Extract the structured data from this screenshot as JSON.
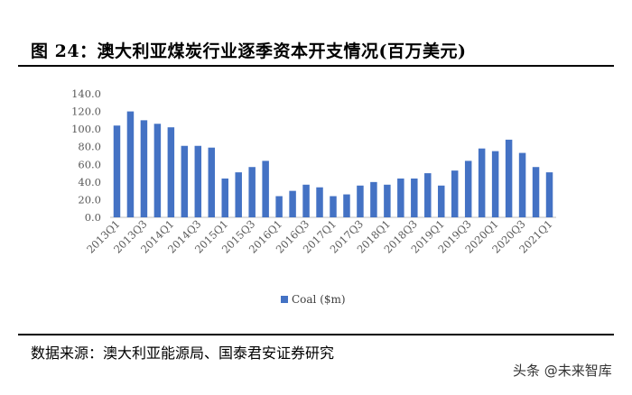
{
  "figure": {
    "title": "图 24：澳大利亚煤炭行业逐季资本开支情况(百万美元)",
    "source": "数据来源：澳大利亚能源局、国泰君安证券研究",
    "watermark": "头条 @未来智库"
  },
  "chart_data": {
    "type": "bar",
    "bar_color": "#4472C4",
    "categories": [
      "2013Q1",
      "2013Q2",
      "2013Q3",
      "2013Q4",
      "2014Q1",
      "2014Q2",
      "2014Q3",
      "2014Q4",
      "2015Q1",
      "2015Q2",
      "2015Q3",
      "2015Q4",
      "2016Q1",
      "2016Q2",
      "2016Q3",
      "2016Q4",
      "2017Q1",
      "2017Q2",
      "2017Q3",
      "2017Q4",
      "2018Q1",
      "2018Q2",
      "2018Q3",
      "2018Q4",
      "2019Q1",
      "2019Q2",
      "2019Q3",
      "2019Q4",
      "2020Q1",
      "2020Q2",
      "2020Q3",
      "2020Q4",
      "2021Q1"
    ],
    "tick_labels": [
      "2013Q1",
      "2013Q3",
      "2014Q1",
      "2014Q3",
      "2015Q1",
      "2015Q3",
      "2016Q1",
      "2016Q3",
      "2017Q1",
      "2017Q3",
      "2018Q1",
      "2018Q3",
      "2019Q1",
      "2019Q3",
      "2020Q1",
      "2020Q3",
      "2021Q1"
    ],
    "series": [
      {
        "name": "Coal ($m)",
        "values": [
          104,
          120,
          110,
          106,
          102,
          81,
          81,
          79,
          44,
          51,
          57,
          64,
          24,
          30,
          37,
          34,
          24,
          26,
          36,
          40,
          37,
          44,
          44,
          50,
          36,
          53,
          64,
          78,
          75,
          88,
          73,
          57,
          51
        ]
      }
    ],
    "yticks": [
      "0.0",
      "20.0",
      "40.0",
      "60.0",
      "80.0",
      "100.0",
      "120.0",
      "140.0"
    ],
    "ylim": [
      0,
      140
    ],
    "legend_position": "bottom",
    "grid": false
  }
}
